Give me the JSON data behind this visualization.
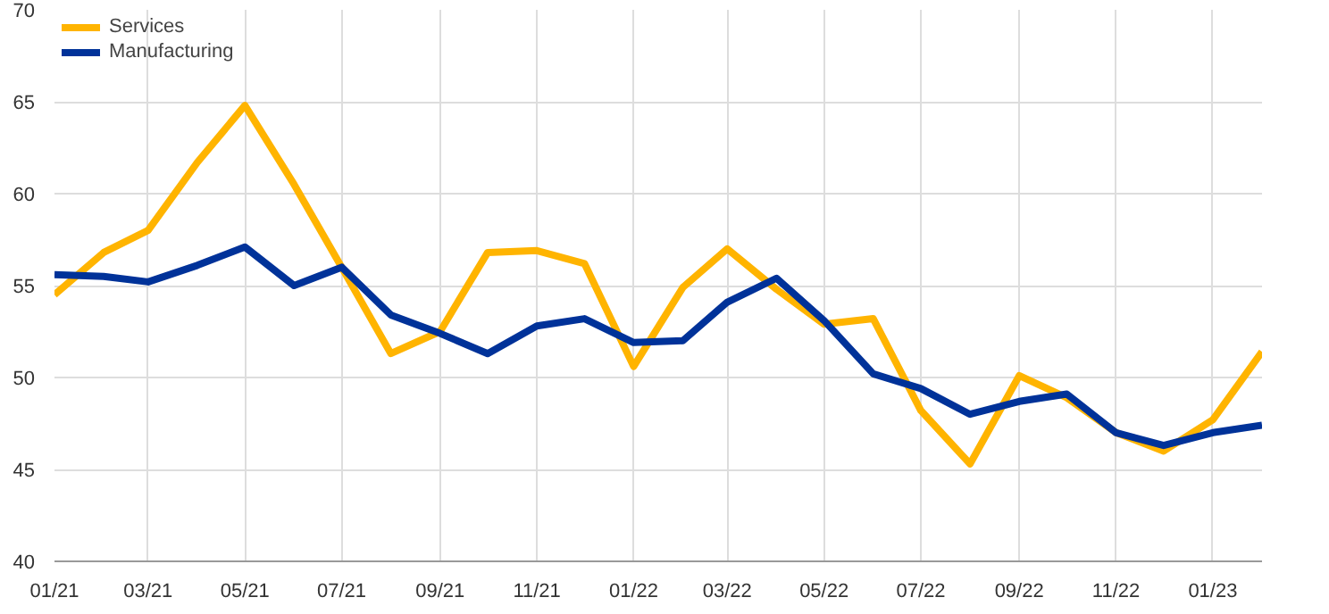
{
  "chart_data": {
    "type": "line",
    "x": [
      "2021-01",
      "2021-02",
      "2021-03",
      "2021-04",
      "2021-05",
      "2021-06",
      "2021-07",
      "2021-08",
      "2021-09",
      "2021-10",
      "2021-11",
      "2021-12",
      "2022-01",
      "2022-02",
      "2022-03",
      "2022-04",
      "2022-05",
      "2022-06",
      "2022-07",
      "2022-08",
      "2022-09",
      "2022-10",
      "2022-11",
      "2022-12",
      "2023-01",
      "2023-02"
    ],
    "series": [
      {
        "name": "Services",
        "color": "#ffb400",
        "values": [
          54.5,
          56.8,
          58.0,
          61.7,
          64.8,
          60.5,
          56.0,
          51.3,
          52.5,
          56.8,
          56.9,
          56.2,
          50.6,
          54.9,
          57.0,
          54.8,
          52.9,
          53.2,
          48.2,
          45.3,
          50.1,
          48.9,
          47.0,
          46.0,
          47.7,
          51.4
        ]
      },
      {
        "name": "Manufacturing",
        "color": "#003299",
        "values": [
          55.6,
          55.5,
          55.2,
          56.1,
          57.1,
          55.0,
          56.0,
          53.4,
          52.4,
          51.3,
          52.8,
          53.2,
          51.9,
          52.0,
          54.1,
          55.4,
          53.1,
          50.2,
          49.4,
          48.0,
          48.7,
          49.1,
          47.0,
          46.3,
          47.0,
          47.4
        ]
      }
    ],
    "xlim": [
      "2021-01",
      "2023-02"
    ],
    "xticks": [
      {
        "value": "2021-01",
        "label": "01/21"
      },
      {
        "value": "2021-03",
        "label": "03/21"
      },
      {
        "value": "2021-05",
        "label": "05/21"
      },
      {
        "value": "2021-07",
        "label": "07/21"
      },
      {
        "value": "2021-09",
        "label": "09/21"
      },
      {
        "value": "2021-11",
        "label": "11/21"
      },
      {
        "value": "2022-01",
        "label": "01/22"
      },
      {
        "value": "2022-03",
        "label": "03/22"
      },
      {
        "value": "2022-05",
        "label": "05/22"
      },
      {
        "value": "2022-07",
        "label": "07/22"
      },
      {
        "value": "2022-09",
        "label": "09/22"
      },
      {
        "value": "2022-11",
        "label": "11/22"
      },
      {
        "value": "2023-01",
        "label": "01/23"
      }
    ],
    "ylim": [
      40,
      70
    ],
    "yticks": [
      40,
      45,
      50,
      55,
      60,
      65,
      70
    ],
    "grid": true,
    "legend": "top left",
    "line_style": "solid"
  }
}
